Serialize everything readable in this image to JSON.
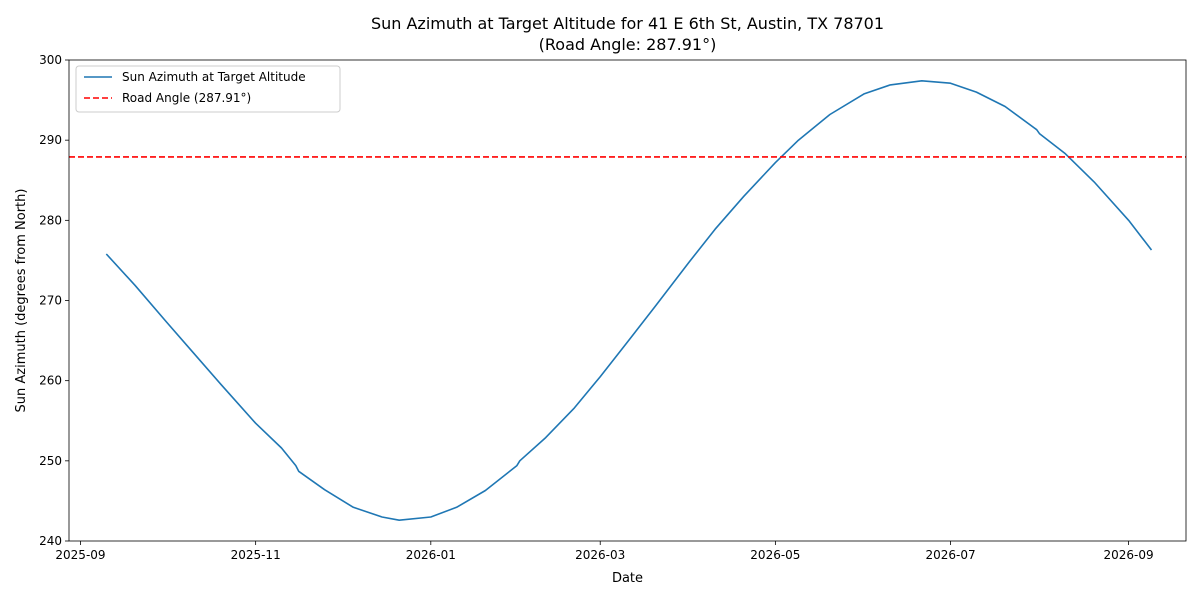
{
  "chart_data": {
    "type": "line",
    "title": "Sun Azimuth at Target Altitude for 41 E 6th St, Austin, TX 78701",
    "subtitle": "(Road Angle: 287.91°)",
    "xlabel": "Date",
    "ylabel": "Sun Azimuth (degrees from North)",
    "xlim": [
      "2025-08-28",
      "2026-09-21"
    ],
    "ylim": [
      240,
      300
    ],
    "x_ticks": [
      "2025-09",
      "2025-11",
      "2026-01",
      "2026-03",
      "2026-05",
      "2026-07",
      "2026-09"
    ],
    "y_ticks": [
      240,
      250,
      260,
      270,
      280,
      290,
      300
    ],
    "grid": false,
    "legend": "top-left",
    "series": [
      {
        "name": "Sun Azimuth at Target Altitude",
        "style": "solid",
        "color": "#1f77b4",
        "points": [
          [
            "2025-09-10",
            275.8
          ],
          [
            "2025-09-20",
            271.9
          ],
          [
            "2025-10-01",
            267.3
          ],
          [
            "2025-10-10",
            263.6
          ],
          [
            "2025-10-20",
            259.5
          ],
          [
            "2025-11-01",
            254.7
          ],
          [
            "2025-11-10",
            251.6
          ],
          [
            "2025-11-15",
            249.4
          ],
          [
            "2025-11-16",
            248.7
          ],
          [
            "2025-11-25",
            246.4
          ],
          [
            "2025-12-05",
            244.2
          ],
          [
            "2025-12-15",
            243.0
          ],
          [
            "2025-12-21",
            242.6
          ],
          [
            "2026-01-01",
            243.0
          ],
          [
            "2026-01-10",
            244.2
          ],
          [
            "2026-01-20",
            246.3
          ],
          [
            "2026-01-31",
            249.4
          ],
          [
            "2026-02-01",
            250.0
          ],
          [
            "2026-02-10",
            252.9
          ],
          [
            "2026-02-20",
            256.6
          ],
          [
            "2026-03-01",
            260.5
          ],
          [
            "2026-03-10",
            264.6
          ],
          [
            "2026-03-20",
            269.2
          ],
          [
            "2026-04-01",
            274.8
          ],
          [
            "2026-04-10",
            278.9
          ],
          [
            "2026-04-20",
            283.0
          ],
          [
            "2026-05-01",
            287.2
          ],
          [
            "2026-05-09",
            290.0
          ],
          [
            "2026-05-20",
            293.2
          ],
          [
            "2026-06-01",
            295.8
          ],
          [
            "2026-06-10",
            296.9
          ],
          [
            "2026-06-21",
            297.4
          ],
          [
            "2026-07-01",
            297.1
          ],
          [
            "2026-07-10",
            296.0
          ],
          [
            "2026-07-20",
            294.2
          ],
          [
            "2026-07-31",
            291.3
          ],
          [
            "2026-08-01",
            290.8
          ],
          [
            "2026-08-10",
            288.3
          ],
          [
            "2026-08-20",
            284.8
          ],
          [
            "2026-09-01",
            280.0
          ],
          [
            "2026-09-09",
            276.3
          ]
        ]
      },
      {
        "name": "Road Angle (287.91°)",
        "style": "dashed",
        "color": "#ff0000",
        "y": 287.91
      }
    ]
  }
}
